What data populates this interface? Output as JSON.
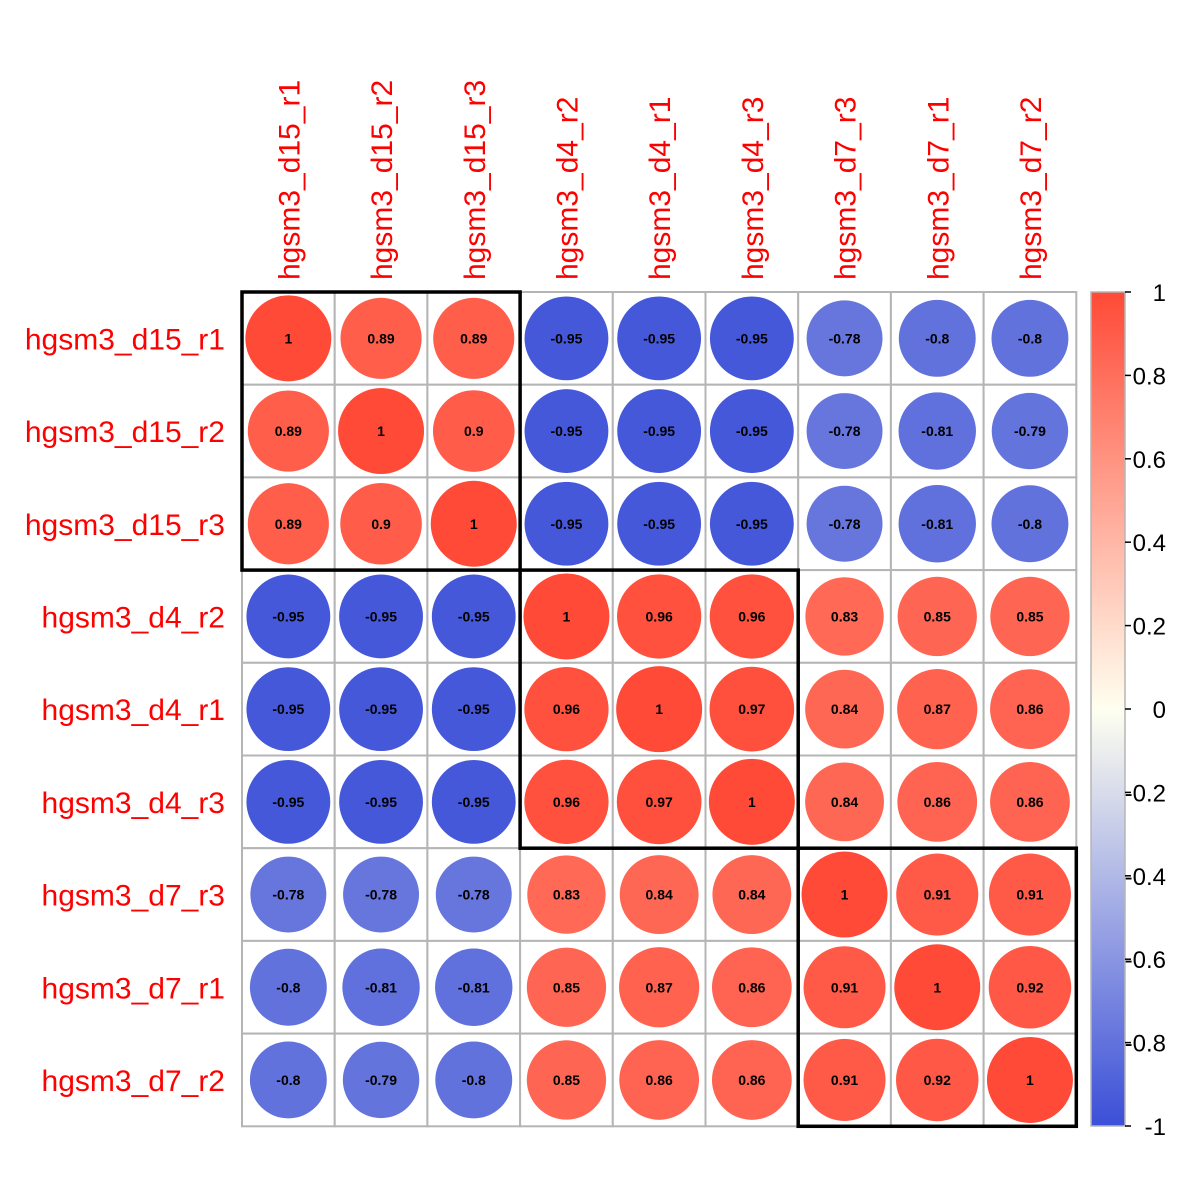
{
  "chart_data": {
    "type": "heatmap",
    "labels": [
      "hgsm3_d15_r1",
      "hgsm3_d15_r2",
      "hgsm3_d15_r3",
      "hgsm3_d4_r2",
      "hgsm3_d4_r1",
      "hgsm3_d4_r3",
      "hgsm3_d7_r3",
      "hgsm3_d7_r1",
      "hgsm3_d7_r2"
    ],
    "matrix": [
      [
        1,
        0.89,
        0.89,
        -0.95,
        -0.95,
        -0.95,
        -0.78,
        -0.8,
        -0.8
      ],
      [
        0.89,
        1,
        0.9,
        -0.95,
        -0.95,
        -0.95,
        -0.78,
        -0.81,
        -0.79
      ],
      [
        0.89,
        0.9,
        1,
        -0.95,
        -0.95,
        -0.95,
        -0.78,
        -0.81,
        -0.8
      ],
      [
        -0.95,
        -0.95,
        -0.95,
        1,
        0.96,
        0.96,
        0.83,
        0.85,
        0.85
      ],
      [
        -0.95,
        -0.95,
        -0.95,
        0.96,
        1,
        0.97,
        0.84,
        0.87,
        0.86
      ],
      [
        -0.95,
        -0.95,
        -0.95,
        0.96,
        0.97,
        1,
        0.84,
        0.86,
        0.86
      ],
      [
        -0.78,
        -0.78,
        -0.78,
        0.83,
        0.84,
        0.84,
        1,
        0.91,
        0.91
      ],
      [
        -0.8,
        -0.81,
        -0.81,
        0.85,
        0.87,
        0.86,
        0.91,
        1,
        0.92
      ],
      [
        -0.8,
        -0.79,
        -0.8,
        0.85,
        0.86,
        0.86,
        0.91,
        0.92,
        1
      ]
    ],
    "clusters": [
      [
        0,
        2
      ],
      [
        3,
        5
      ],
      [
        6,
        8
      ]
    ],
    "colorbar": {
      "ticks": [
        "1",
        "0.8",
        "0.6",
        "0.4",
        "0.2",
        "0",
        "-0.2",
        "-0.4",
        "-0.6",
        "-0.8",
        "-1"
      ],
      "range": [
        -1,
        1
      ],
      "colors": {
        "neg": "#3B4FD8",
        "mid": "#FFFFF0",
        "pos": "#FF4A37"
      }
    },
    "label_color": "#FF0000",
    "grid_color": "#B5B5B5"
  }
}
